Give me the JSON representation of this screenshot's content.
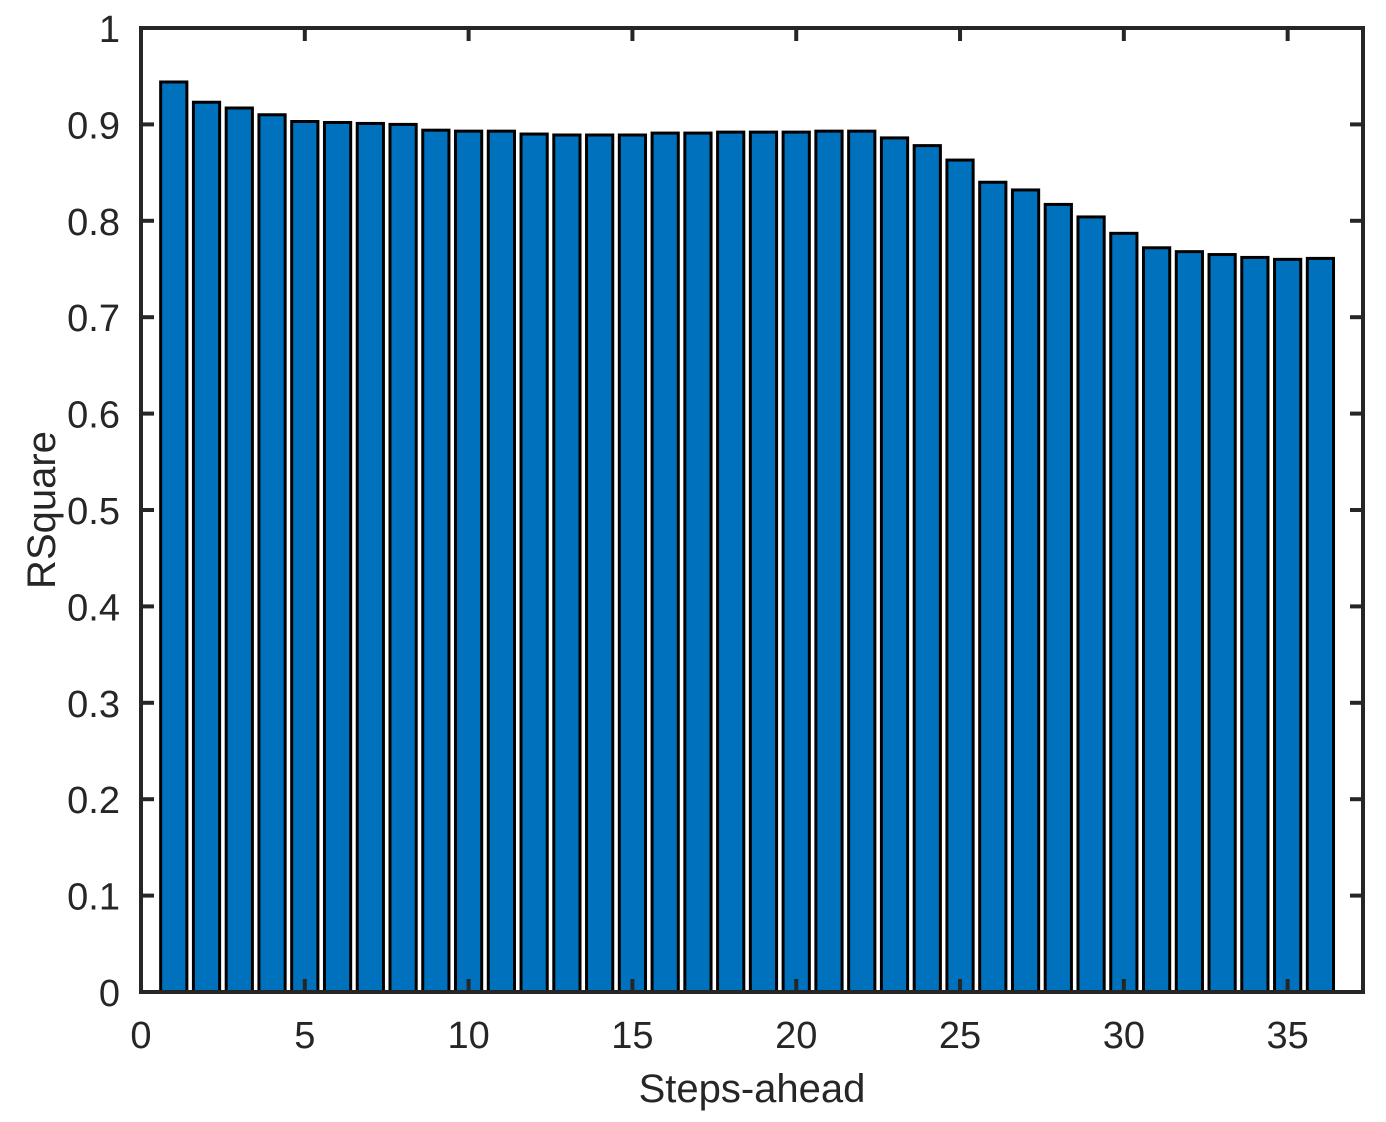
{
  "figure": {
    "background": "#ffffff"
  },
  "chart_data": {
    "type": "bar",
    "title": "",
    "xlabel": "Steps-ahead",
    "ylabel": "RSquare",
    "x": [
      1,
      2,
      3,
      4,
      5,
      6,
      7,
      8,
      9,
      10,
      11,
      12,
      13,
      14,
      15,
      16,
      17,
      18,
      19,
      20,
      21,
      22,
      23,
      24,
      25,
      26,
      27,
      28,
      29,
      30,
      31,
      32,
      33,
      34,
      35,
      36
    ],
    "values": [
      0.944,
      0.923,
      0.917,
      0.91,
      0.903,
      0.902,
      0.901,
      0.9,
      0.894,
      0.893,
      0.893,
      0.89,
      0.889,
      0.889,
      0.889,
      0.891,
      0.891,
      0.892,
      0.892,
      0.892,
      0.893,
      0.893,
      0.886,
      0.878,
      0.863,
      0.84,
      0.832,
      0.817,
      0.804,
      0.787,
      0.772,
      0.768,
      0.765,
      0.762,
      0.76,
      0.761
    ],
    "xlim": [
      0,
      37.3
    ],
    "ylim": [
      0,
      1
    ],
    "xtick_values": [
      0,
      5,
      10,
      15,
      20,
      25,
      30,
      35
    ],
    "xtick_labels": [
      "0",
      "5",
      "10",
      "15",
      "20",
      "25",
      "30",
      "35"
    ],
    "ytick_values": [
      0,
      0.1,
      0.2,
      0.3,
      0.4,
      0.5,
      0.6,
      0.7,
      0.8,
      0.9,
      1
    ],
    "ytick_labels": [
      "0",
      "0.1",
      "0.2",
      "0.3",
      "0.4",
      "0.5",
      "0.6",
      "0.7",
      "0.8",
      "0.9",
      "1"
    ],
    "bar_width_fraction": 0.8,
    "grid": false,
    "legend": null,
    "box": true,
    "tick_direction": "in",
    "colors": {
      "bar_fill": "#0072BD",
      "bar_edge": "#000000",
      "axis": "#262626",
      "tick_label": "#262626",
      "axis_label": "#262626",
      "background": "#ffffff"
    }
  }
}
